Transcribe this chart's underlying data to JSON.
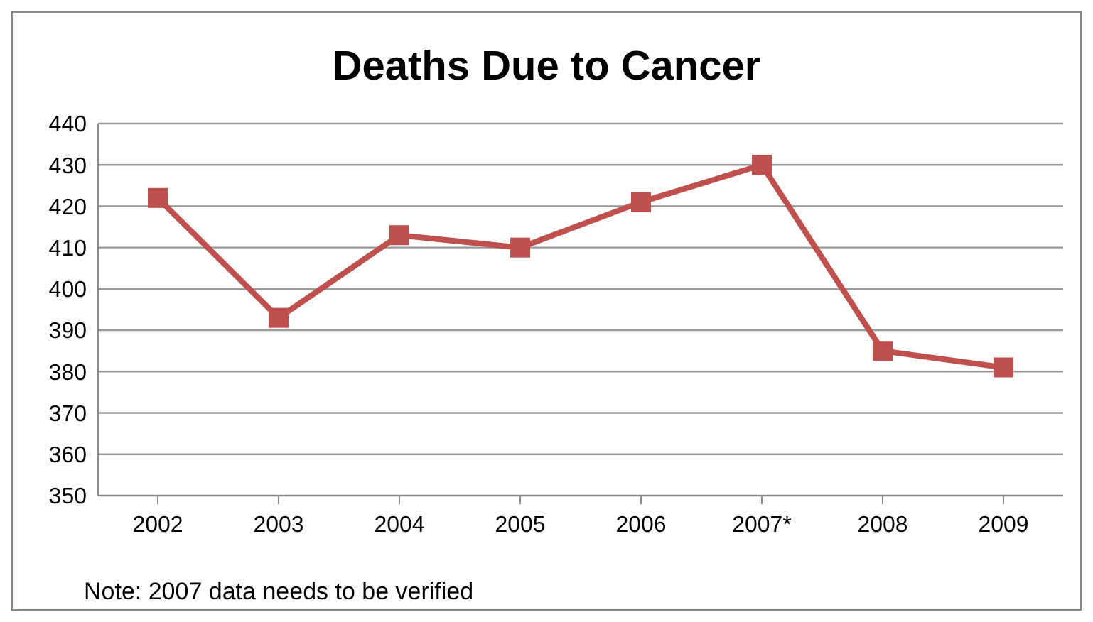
{
  "chart_data": {
    "type": "line",
    "title": "Deaths Due to Cancer",
    "categories": [
      "2002",
      "2003",
      "2004",
      "2005",
      "2006",
      "2007*",
      "2008",
      "2009"
    ],
    "series": [
      {
        "color": "#c0504d",
        "values": [
          422,
          393,
          413,
          410,
          421,
          430,
          385,
          381
        ]
      }
    ],
    "ylim": [
      350,
      440
    ],
    "yticks": [
      350,
      360,
      370,
      380,
      390,
      400,
      410,
      420,
      430,
      440
    ],
    "grid": "y",
    "legend": false,
    "marker": "square",
    "line_style": "solid",
    "annotations": [
      "Note: 2007 data needs to be verified"
    ]
  }
}
